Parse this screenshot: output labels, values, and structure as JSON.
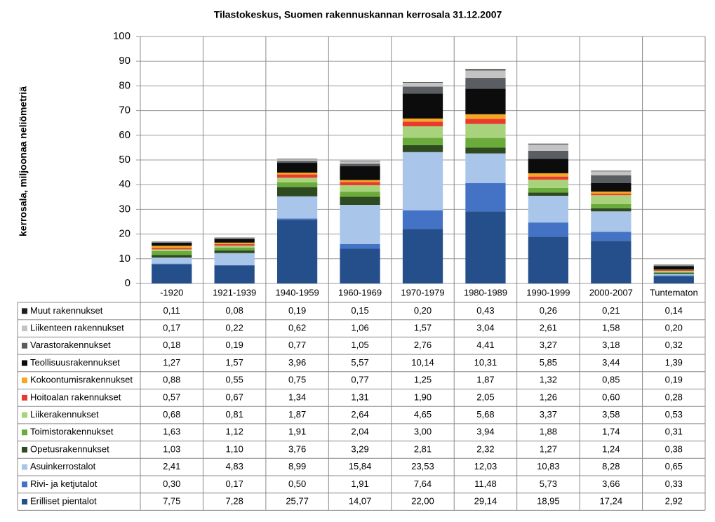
{
  "chart_data": {
    "type": "stacked_bar",
    "title": "Tilastokeskus, Suomen rakennuskannan kerrosala 31.12.2007",
    "y_label": "kerrosala, miljoonaa neliömetriä",
    "categories": [
      "-1920",
      "1921-1939",
      "1940-1959",
      "1960-1969",
      "1970-1979",
      "1980-1989",
      "1990-1999",
      "2000-2007",
      "Tuntematon"
    ],
    "ylim": [
      0,
      100
    ],
    "yticks": [
      0,
      10,
      20,
      30,
      40,
      50,
      60,
      70,
      80,
      90,
      100
    ],
    "grid": true,
    "series": [
      {
        "name": "Muut rakennukset",
        "color": "#1e1e1e",
        "values": [
          0.11,
          0.08,
          0.19,
          0.15,
          0.2,
          0.43,
          0.26,
          0.21,
          0.14
        ],
        "value_labels": [
          "0,11",
          "0,08",
          "0,19",
          "0,15",
          "0,20",
          "0,43",
          "0,26",
          "0,21",
          "0,14"
        ]
      },
      {
        "name": "Liikenteen rakennukset",
        "color": "#c3c3c3",
        "values": [
          0.17,
          0.22,
          0.62,
          1.06,
          1.57,
          3.04,
          2.61,
          1.58,
          0.2
        ],
        "value_labels": [
          "0,17",
          "0,22",
          "0,62",
          "1,06",
          "1,57",
          "3,04",
          "2,61",
          "1,58",
          "0,20"
        ]
      },
      {
        "name": "Varastorakennukset",
        "color": "#5a5e62",
        "values": [
          0.18,
          0.19,
          0.77,
          1.05,
          2.76,
          4.41,
          3.27,
          3.18,
          0.32
        ],
        "value_labels": [
          "0,18",
          "0,19",
          "0,77",
          "1,05",
          "2,76",
          "4,41",
          "3,27",
          "3,18",
          "0,32"
        ]
      },
      {
        "name": "Teollisuusrakennukset",
        "color": "#0c0c0c",
        "values": [
          1.27,
          1.57,
          3.96,
          5.57,
          10.14,
          10.31,
          5.85,
          3.44,
          1.39
        ],
        "value_labels": [
          "1,27",
          "1,57",
          "3,96",
          "5,57",
          "10,14",
          "10,31",
          "5,85",
          "3,44",
          "1,39"
        ]
      },
      {
        "name": "Kokoontumisrakennukset",
        "color": "#f7a823",
        "values": [
          0.88,
          0.55,
          0.75,
          0.77,
          1.25,
          1.87,
          1.32,
          0.85,
          0.19
        ],
        "value_labels": [
          "0,88",
          "0,55",
          "0,75",
          "0,77",
          "1,25",
          "1,87",
          "1,32",
          "0,85",
          "0,19"
        ]
      },
      {
        "name": "Hoitoalan rakennukset",
        "color": "#e93a2e",
        "values": [
          0.57,
          0.67,
          1.34,
          1.31,
          1.9,
          2.05,
          1.26,
          0.6,
          0.28
        ],
        "value_labels": [
          "0,57",
          "0,67",
          "1,34",
          "1,31",
          "1,90",
          "2,05",
          "1,26",
          "0,60",
          "0,28"
        ]
      },
      {
        "name": "Liikerakennukset",
        "color": "#a8d37c",
        "values": [
          0.68,
          0.81,
          1.87,
          2.64,
          4.65,
          5.68,
          3.37,
          3.58,
          0.53
        ],
        "value_labels": [
          "0,68",
          "0,81",
          "1,87",
          "2,64",
          "4,65",
          "5,68",
          "3,37",
          "3,58",
          "0,53"
        ]
      },
      {
        "name": "Toimistorakennukset",
        "color": "#6bab3c",
        "values": [
          1.63,
          1.12,
          1.91,
          2.04,
          3.0,
          3.94,
          1.88,
          1.74,
          0.31
        ],
        "value_labels": [
          "1,63",
          "1,12",
          "1,91",
          "2,04",
          "3,00",
          "3,94",
          "1,88",
          "1,74",
          "0,31"
        ]
      },
      {
        "name": "Opetusrakennukset",
        "color": "#2e4a20",
        "values": [
          1.03,
          1.1,
          3.76,
          3.29,
          2.81,
          2.32,
          1.27,
          1.24,
          0.38
        ],
        "value_labels": [
          "1,03",
          "1,10",
          "3,76",
          "3,29",
          "2,81",
          "2,32",
          "1,27",
          "1,24",
          "0,38"
        ]
      },
      {
        "name": "Asuinkerrostalot",
        "color": "#a9c6ea",
        "values": [
          2.41,
          4.83,
          8.99,
          15.84,
          23.53,
          12.03,
          10.83,
          8.28,
          0.65
        ],
        "value_labels": [
          "2,41",
          "4,83",
          "8,99",
          "15,84",
          "23,53",
          "12,03",
          "10,83",
          "8,28",
          "0,65"
        ]
      },
      {
        "name": "Rivi- ja ketjutalot",
        "color": "#4473c5",
        "values": [
          0.3,
          0.17,
          0.5,
          1.91,
          7.64,
          11.48,
          5.73,
          3.66,
          0.33
        ],
        "value_labels": [
          "0,30",
          "0,17",
          "0,50",
          "1,91",
          "7,64",
          "11,48",
          "5,73",
          "3,66",
          "0,33"
        ]
      },
      {
        "name": "Erilliset pientalot",
        "color": "#244f8a",
        "values": [
          7.75,
          7.28,
          25.77,
          14.07,
          22.0,
          29.14,
          18.95,
          17.24,
          2.92
        ],
        "value_labels": [
          "7,75",
          "7,28",
          "25,77",
          "14,07",
          "22,00",
          "29,14",
          "18,95",
          "17,24",
          "2,92"
        ]
      }
    ]
  }
}
